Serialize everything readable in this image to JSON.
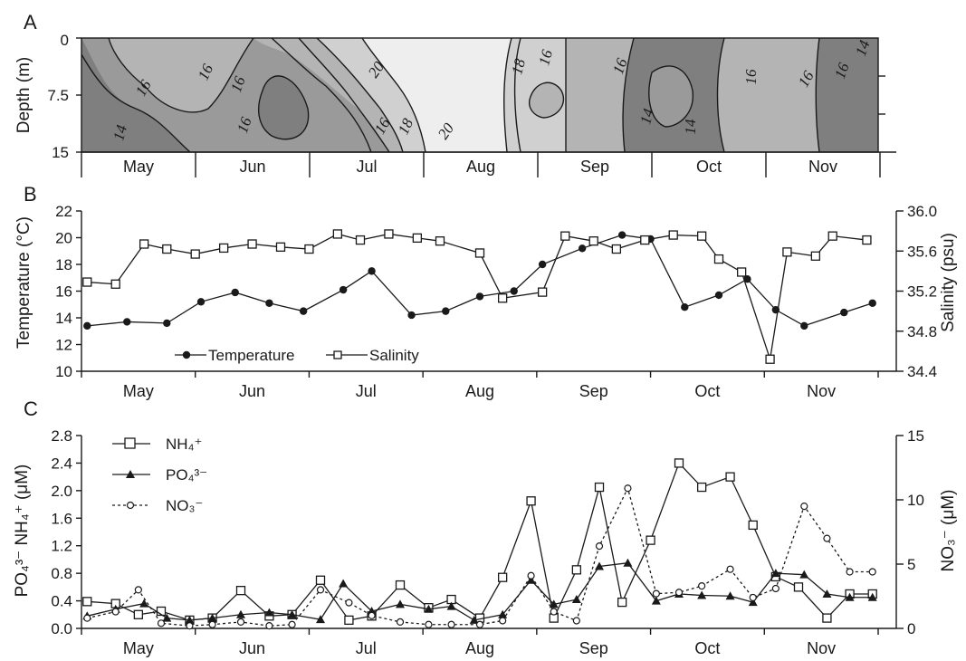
{
  "months": [
    "May",
    "Jun",
    "Jul",
    "Aug",
    "Sep",
    "Oct",
    "Nov"
  ],
  "chart_data": [
    {
      "panel": "A",
      "type": "heatmap",
      "ylabel": "Depth (m)",
      "y_ticks": [
        "0",
        "7.5",
        "15"
      ],
      "ylim": [
        0,
        15
      ],
      "contour_labels": [
        "16",
        "16",
        "14",
        "16",
        "16",
        "16",
        "20",
        "20",
        "16",
        "18",
        "18",
        "16",
        "16",
        "14",
        "14",
        "16",
        "16",
        "14"
      ],
      "colors": {
        "le14": "#7f7f7f",
        "14_16": "#9a9a9a",
        "16_18": "#b4b4b4",
        "18_20": "#d0d0d0",
        "ge20": "#eeeeee"
      }
    },
    {
      "panel": "B",
      "type": "line",
      "ylabel": "Temperature (°C)",
      "y2label": "Salinity (psu)",
      "y_ticks": [
        "10",
        "12",
        "14",
        "16",
        "18",
        "20",
        "22"
      ],
      "y2_ticks": [
        "34.4",
        "34.8",
        "35.2",
        "35.6",
        "36.0"
      ],
      "ylim": [
        10,
        22
      ],
      "y2lim": [
        34.4,
        36.0
      ],
      "series": [
        {
          "name": "Temperature",
          "marker": "filled-circle",
          "axis": "left",
          "x": [
            0.05,
            0.4,
            0.75,
            1.05,
            1.35,
            1.65,
            1.95,
            2.3,
            2.55,
            2.9,
            3.2,
            3.5,
            3.8,
            4.05,
            4.4,
            4.75,
            5.0,
            5.3,
            5.6,
            5.85,
            6.1,
            6.35,
            6.7,
            6.95
          ],
          "values": [
            13.4,
            13.7,
            13.6,
            15.2,
            15.9,
            15.1,
            14.5,
            16.1,
            17.5,
            14.2,
            14.5,
            15.6,
            16.0,
            18.0,
            19.2,
            20.2,
            19.9,
            14.8,
            15.7,
            16.9,
            14.6,
            13.4,
            14.4,
            15.1
          ]
        },
        {
          "name": "Salinity",
          "marker": "open-square",
          "axis": "right",
          "x": [
            0.05,
            0.3,
            0.55,
            0.75,
            1.0,
            1.25,
            1.5,
            1.75,
            2.0,
            2.25,
            2.45,
            2.7,
            2.95,
            3.15,
            3.5,
            3.7,
            4.05,
            4.25,
            4.5,
            4.7,
            4.95,
            5.2,
            5.45,
            5.6,
            5.8,
            6.05,
            6.2,
            6.45,
            6.6,
            6.9
          ],
          "values": [
            35.29,
            35.27,
            35.67,
            35.62,
            35.57,
            35.63,
            35.67,
            35.64,
            35.62,
            35.77,
            35.71,
            35.77,
            35.73,
            35.7,
            35.58,
            35.13,
            35.19,
            35.75,
            35.7,
            35.62,
            35.71,
            35.76,
            35.75,
            35.52,
            35.39,
            34.52,
            35.59,
            35.55,
            35.75,
            35.71
          ]
        }
      ]
    },
    {
      "panel": "C",
      "type": "line",
      "ylabel": "PO₄³⁻ NH₄⁺ (μM)",
      "y2label": "NO₃⁻ (μM)",
      "y_ticks": [
        "0.0",
        "0.4",
        "0.8",
        "1.2",
        "1.6",
        "2.0",
        "2.4",
        "2.8"
      ],
      "y2_ticks": [
        "0",
        "5",
        "10",
        "15"
      ],
      "ylim": [
        0,
        2.8
      ],
      "y2lim": [
        0,
        15
      ],
      "series": [
        {
          "name": "NH₄⁺",
          "marker": "open-square",
          "axis": "left",
          "x": [
            0.05,
            0.3,
            0.5,
            0.7,
            0.95,
            1.15,
            1.4,
            1.65,
            1.85,
            2.1,
            2.35,
            2.55,
            2.8,
            3.05,
            3.25,
            3.5,
            3.7,
            3.95,
            4.15,
            4.35,
            4.55,
            4.75,
            5.0,
            5.25,
            5.45,
            5.7,
            5.9,
            6.1,
            6.3,
            6.55,
            6.75,
            6.95
          ],
          "values": [
            0.39,
            0.36,
            0.2,
            0.25,
            0.12,
            0.15,
            0.55,
            0.18,
            0.2,
            0.7,
            0.12,
            0.18,
            0.63,
            0.3,
            0.42,
            0.15,
            0.74,
            1.85,
            0.15,
            0.85,
            2.05,
            0.38,
            1.28,
            2.4,
            2.05,
            2.2,
            1.5,
            0.75,
            0.6,
            0.15,
            0.5,
            0.5
          ]
        },
        {
          "name": "PO₄³⁻",
          "marker": "filled-triangle",
          "axis": "left",
          "x": [
            0.05,
            0.3,
            0.55,
            0.75,
            0.95,
            1.15,
            1.4,
            1.65,
            1.85,
            2.1,
            2.3,
            2.55,
            2.8,
            3.05,
            3.25,
            3.45,
            3.7,
            3.95,
            4.15,
            4.35,
            4.55,
            4.8,
            5.05,
            5.25,
            5.45,
            5.7,
            5.9,
            6.1,
            6.35,
            6.55,
            6.75,
            6.95
          ],
          "values": [
            0.18,
            0.28,
            0.36,
            0.15,
            0.12,
            0.15,
            0.2,
            0.23,
            0.2,
            0.13,
            0.65,
            0.25,
            0.35,
            0.28,
            0.32,
            0.12,
            0.2,
            0.7,
            0.35,
            0.42,
            0.9,
            0.95,
            0.4,
            0.5,
            0.48,
            0.47,
            0.38,
            0.8,
            0.78,
            0.5,
            0.45,
            0.45
          ]
        },
        {
          "name": "NO₃⁻",
          "marker": "open-circle",
          "dashed": true,
          "axis": "right",
          "x": [
            0.05,
            0.3,
            0.5,
            0.7,
            0.95,
            1.15,
            1.4,
            1.65,
            1.85,
            2.1,
            2.35,
            2.55,
            2.8,
            3.05,
            3.25,
            3.5,
            3.7,
            3.95,
            4.15,
            4.35,
            4.55,
            4.8,
            5.05,
            5.25,
            5.45,
            5.7,
            5.9,
            6.1,
            6.35,
            6.55,
            6.75,
            6.95
          ],
          "values": [
            0.8,
            1.3,
            3.0,
            0.4,
            0.2,
            0.3,
            0.5,
            0.2,
            0.3,
            3.0,
            2.0,
            1.0,
            0.5,
            0.3,
            0.3,
            0.3,
            0.6,
            4.1,
            1.3,
            0.6,
            6.4,
            10.9,
            2.7,
            2.8,
            3.3,
            4.6,
            2.4,
            3.1,
            9.5,
            7.0,
            4.4,
            4.4
          ]
        }
      ]
    }
  ]
}
